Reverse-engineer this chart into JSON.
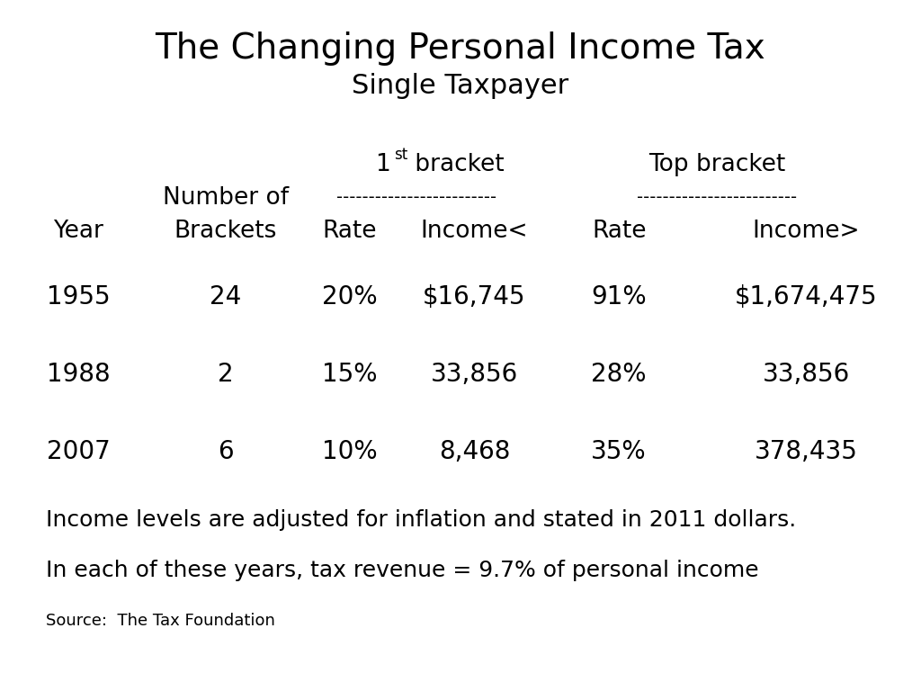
{
  "title_line1": "The Changing Personal Income Tax",
  "title_line2": "Single Taxpayer",
  "col_header_dashes": "-------------------------",
  "col_number_of": "Number of",
  "col_year": "Year",
  "col_brackets": "Brackets",
  "col_rate1": "Rate",
  "col_income_lt": "Income<",
  "col_rate2": "Rate",
  "col_income_gt": "Income>",
  "rows": [
    [
      "1955",
      "24",
      "20%",
      "$16,745",
      "91%",
      "$1,674,475"
    ],
    [
      "1988",
      "2",
      "15%",
      "33,856",
      "28%",
      "33,856"
    ],
    [
      "2007",
      "6",
      "10%",
      "8,468",
      "35%",
      "378,435"
    ]
  ],
  "footnote1": "Income levels are adjusted for inflation and stated in 2011 dollars.",
  "footnote2": "In each of these years, tax revenue = 9.7% of personal income",
  "source": "Source:  The Tax Foundation",
  "bg_color": "#ffffff",
  "text_color": "#000000",
  "title1_fontsize": 28,
  "title2_fontsize": 22,
  "header_fontsize": 19,
  "data_fontsize": 20,
  "footnote1_fontsize": 18,
  "footnote2_fontsize": 18,
  "source_fontsize": 13
}
